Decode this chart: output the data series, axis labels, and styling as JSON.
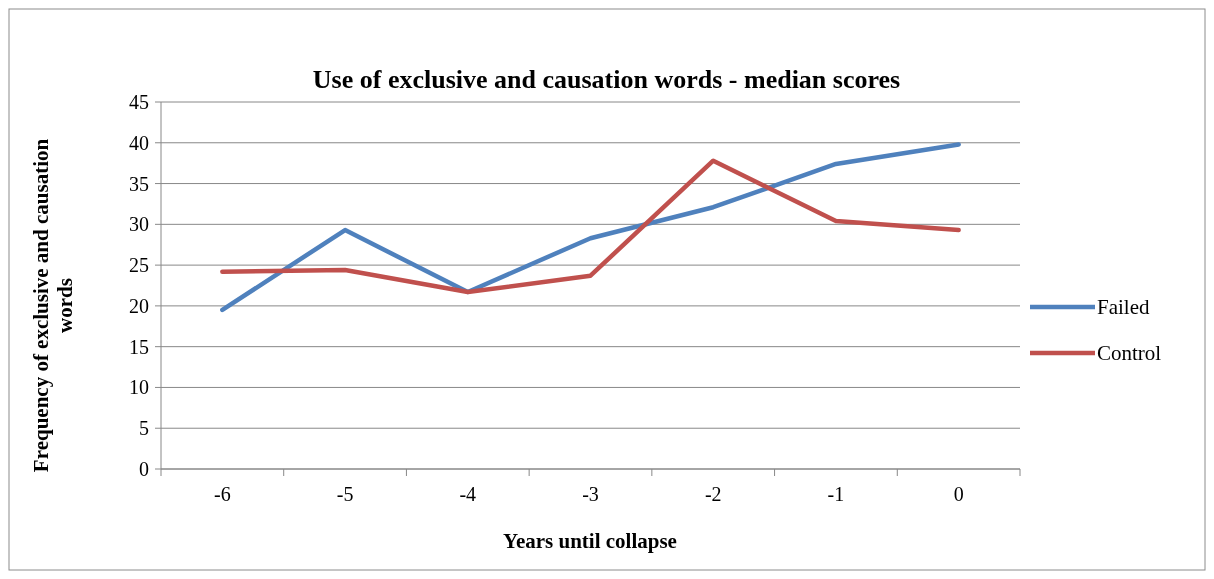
{
  "chart_data": {
    "type": "line",
    "title": "Use of exclusive and causation words - median scores",
    "xlabel": "Years until collapse",
    "ylabel": "Frequency of exclusive and causation words",
    "categories": [
      "-6",
      "-5",
      "-4",
      "-3",
      "-2",
      "-1",
      "0"
    ],
    "series": [
      {
        "name": "Failed",
        "color": "#4f81bd",
        "values": [
          19.5,
          29.3,
          21.7,
          28.3,
          32.1,
          37.4,
          39.8
        ]
      },
      {
        "name": "Control",
        "color": "#c0504d",
        "values": [
          24.2,
          24.4,
          21.7,
          23.7,
          37.8,
          30.4,
          29.3
        ]
      }
    ],
    "ylim": [
      0,
      45
    ],
    "yticks": [
      0,
      5,
      10,
      15,
      20,
      25,
      30,
      35,
      40,
      45
    ],
    "grid": "y",
    "legend": "right",
    "marker": "none",
    "line_style": "solid"
  }
}
